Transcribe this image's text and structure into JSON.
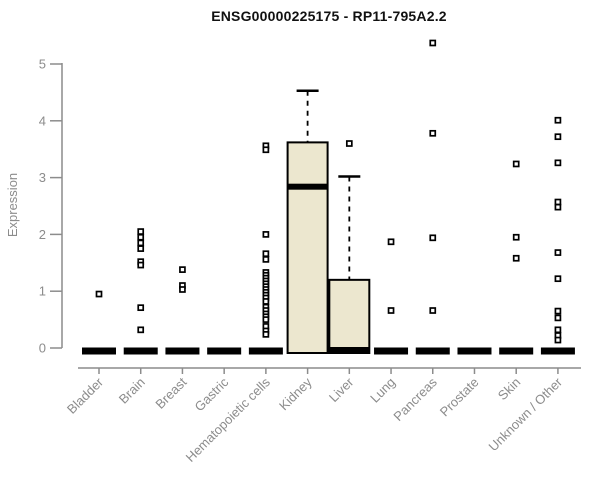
{
  "chart_data": {
    "type": "boxplot",
    "title": "ENSG00000225175 - RP11-795A2.2",
    "ylabel": "Expression",
    "xlabel": "",
    "ylim": [
      0,
      5.4
    ],
    "yticks": [
      0,
      1,
      2,
      3,
      4,
      5
    ],
    "grid": false,
    "legend": "none",
    "axis_color": "#8C8C8C",
    "box_fill": "#ECE7CF",
    "box_stroke": "#000000",
    "marker": "open-square",
    "categories": [
      "Bladder",
      "Brain",
      "Breast",
      "Gastric",
      "Hematopoietic cells",
      "Kidney",
      "Liver",
      "Lung",
      "Pancreas",
      "Prostate",
      "Skin",
      "Unknown / Other"
    ],
    "boxes": [
      {
        "category": "Bladder",
        "q1": 0,
        "median": 0,
        "q3": 0,
        "whisker_low": 0,
        "whisker_high": 0,
        "outliers": [
          0.95
        ]
      },
      {
        "category": "Brain",
        "q1": 0,
        "median": 0,
        "q3": 0,
        "whisker_low": 0,
        "whisker_high": 0,
        "outliers": [
          2.05,
          1.95,
          1.85,
          1.75,
          1.52,
          1.46,
          0.71,
          0.32
        ]
      },
      {
        "category": "Breast",
        "q1": 0,
        "median": 0,
        "q3": 0,
        "whisker_low": 0,
        "whisker_high": 0,
        "outliers": [
          1.38,
          1.1,
          1.03
        ]
      },
      {
        "category": "Gastric",
        "q1": 0,
        "median": 0,
        "q3": 0,
        "whisker_low": 0,
        "whisker_high": 0,
        "outliers": []
      },
      {
        "category": "Hematopoietic cells",
        "q1": 0,
        "median": 0,
        "q3": 0,
        "whisker_low": 0,
        "whisker_high": 0,
        "outliers": [
          3.56,
          3.49,
          2.0,
          1.66,
          1.56,
          1.33,
          1.28,
          1.23,
          1.18,
          1.13,
          1.08,
          1.03,
          0.98,
          0.93,
          0.88,
          0.82,
          0.72,
          0.66,
          0.6,
          0.55,
          0.5,
          0.38,
          0.3,
          0.24
        ]
      },
      {
        "category": "Kidney",
        "q1": 0,
        "median": 2.84,
        "q3": 3.62,
        "whisker_low": 0,
        "whisker_high": 4.53,
        "outliers": []
      },
      {
        "category": "Liver",
        "q1": 0,
        "median": 0,
        "q3": 1.2,
        "whisker_low": 0,
        "whisker_high": 3.02,
        "outliers": [
          3.6
        ]
      },
      {
        "category": "Lung",
        "q1": 0,
        "median": 0,
        "q3": 0,
        "whisker_low": 0,
        "whisker_high": 0,
        "outliers": [
          1.87,
          0.66
        ]
      },
      {
        "category": "Pancreas",
        "q1": 0,
        "median": 0,
        "q3": 0,
        "whisker_low": 0,
        "whisker_high": 0,
        "outliers": [
          5.37,
          3.78,
          1.94,
          0.66
        ]
      },
      {
        "category": "Prostate",
        "q1": 0,
        "median": 0,
        "q3": 0,
        "whisker_low": 0,
        "whisker_high": 0,
        "outliers": []
      },
      {
        "category": "Skin",
        "q1": 0,
        "median": 0,
        "q3": 0,
        "whisker_low": 0,
        "whisker_high": 0,
        "outliers": [
          3.24,
          1.95,
          1.58
        ]
      },
      {
        "category": "Unknown / Other",
        "q1": 0,
        "median": 0,
        "q3": 0,
        "whisker_low": 0,
        "whisker_high": 0,
        "outliers": [
          4.01,
          3.72,
          3.26,
          2.57,
          2.48,
          1.68,
          1.22,
          0.65,
          0.53,
          0.32,
          0.22,
          0.14
        ]
      }
    ]
  }
}
